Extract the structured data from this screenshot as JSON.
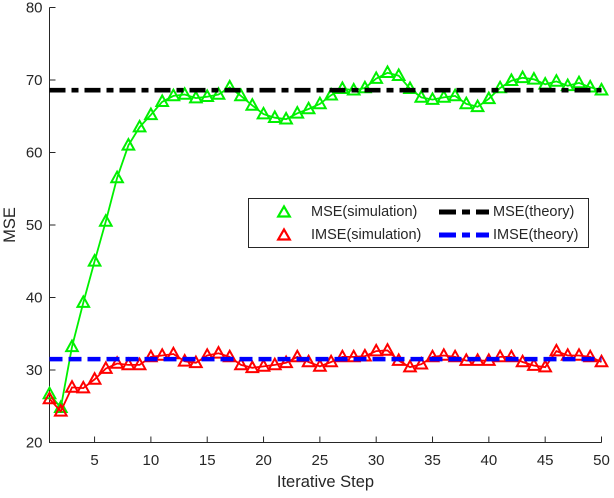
{
  "figure": {
    "background": "#ffffff",
    "axis_color": "#262626"
  },
  "chart_data": {
    "type": "line",
    "title": "",
    "xlabel": "Iterative Step",
    "ylabel": "MSE",
    "xlim": [
      1,
      50
    ],
    "ylim": [
      20,
      80
    ],
    "x_ticks": [
      5,
      10,
      15,
      20,
      25,
      30,
      35,
      40,
      45,
      50
    ],
    "y_ticks": [
      20,
      30,
      40,
      50,
      60,
      70,
      80
    ],
    "grid": false,
    "legend_position": "center-right-box",
    "x": [
      1,
      2,
      3,
      4,
      5,
      6,
      7,
      8,
      9,
      10,
      11,
      12,
      13,
      14,
      15,
      16,
      17,
      18,
      19,
      20,
      21,
      22,
      23,
      24,
      25,
      26,
      27,
      28,
      29,
      30,
      31,
      32,
      33,
      34,
      35,
      36,
      37,
      38,
      39,
      40,
      41,
      42,
      43,
      44,
      45,
      46,
      47,
      48,
      49,
      50
    ],
    "series": [
      {
        "name": "MSE(simulation)",
        "kind": "sim",
        "color": "#00f000",
        "marker": "triangle-open",
        "line_style": "solid",
        "values": [
          26.7,
          24.8,
          33.2,
          39.3,
          45.0,
          50.5,
          56.5,
          61.0,
          63.5,
          65.2,
          67.0,
          67.8,
          68.0,
          67.5,
          67.7,
          68.0,
          69.0,
          67.8,
          66.5,
          65.3,
          64.8,
          64.6,
          65.4,
          66.0,
          66.7,
          67.9,
          68.8,
          68.6,
          68.9,
          70.2,
          71.0,
          70.6,
          68.8,
          67.6,
          67.3,
          67.6,
          67.8,
          66.7,
          66.3,
          67.4,
          68.9,
          69.9,
          70.3,
          70.1,
          69.4,
          69.8,
          69.2,
          69.6,
          69.0,
          68.6
        ]
      },
      {
        "name": "IMSE(simulation)",
        "kind": "sim",
        "color": "#ff0000",
        "marker": "triangle-open",
        "line_style": "solid",
        "values": [
          26.0,
          24.3,
          27.6,
          27.5,
          28.7,
          30.2,
          30.9,
          30.7,
          30.7,
          31.8,
          32.0,
          32.2,
          31.2,
          31.0,
          32.0,
          32.3,
          31.8,
          30.7,
          30.3,
          30.5,
          30.7,
          31.0,
          31.8,
          31.1,
          30.5,
          31.1,
          31.8,
          31.8,
          31.9,
          32.6,
          32.7,
          31.3,
          30.4,
          30.8,
          31.8,
          32.0,
          31.8,
          31.3,
          31.3,
          31.3,
          31.8,
          31.8,
          31.1,
          30.6,
          30.4,
          32.6,
          32.0,
          32.0,
          31.8,
          31.1
        ]
      },
      {
        "name": "MSE(theory)",
        "kind": "theory",
        "color": "#000000",
        "marker": "none",
        "line_style": "dash-dot",
        "value": 68.6
      },
      {
        "name": "IMSE(theory)",
        "kind": "theory",
        "color": "#0000ff",
        "marker": "none",
        "line_style": "dashed",
        "value": 31.5
      }
    ]
  },
  "legend": {
    "entries": [
      {
        "label": "MSE(simulation)",
        "marker": "green-triangle-icon"
      },
      {
        "label": "IMSE(simulation)",
        "marker": "red-triangle-icon"
      },
      {
        "label": "MSE(theory)",
        "marker": "black-dashdot-line-icon"
      },
      {
        "label": "IMSE(theory)",
        "marker": "blue-dashed-line-icon"
      }
    ]
  }
}
